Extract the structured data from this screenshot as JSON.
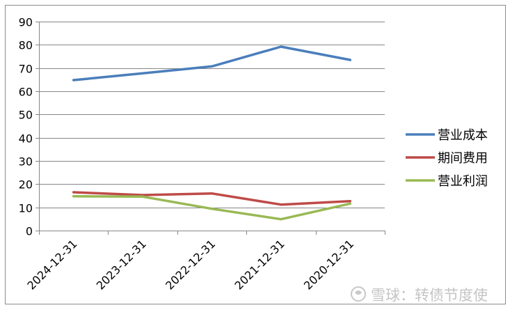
{
  "chart_data": {
    "type": "line",
    "categories": [
      "2024-12-31",
      "2023-12-31",
      "2022-12-31",
      "2021-12-31",
      "2020-12-31"
    ],
    "ylim": [
      0,
      90
    ],
    "yticks": [
      0,
      10,
      20,
      30,
      40,
      50,
      60,
      70,
      80,
      90
    ],
    "grid": true,
    "legend_position": "right",
    "series": [
      {
        "name": "营业成本",
        "color": "#4a7ebb",
        "values": [
          64.8,
          67.7,
          70.7,
          79.2,
          73.5
        ]
      },
      {
        "name": "期间费用",
        "color": "#be4b48",
        "values": [
          16.5,
          15.3,
          16.0,
          11.2,
          12.7
        ]
      },
      {
        "name": "营业利润",
        "color": "#98b954",
        "values": [
          14.8,
          14.6,
          9.4,
          4.9,
          11.6
        ]
      }
    ]
  },
  "watermark": "雪球：转债节度使"
}
